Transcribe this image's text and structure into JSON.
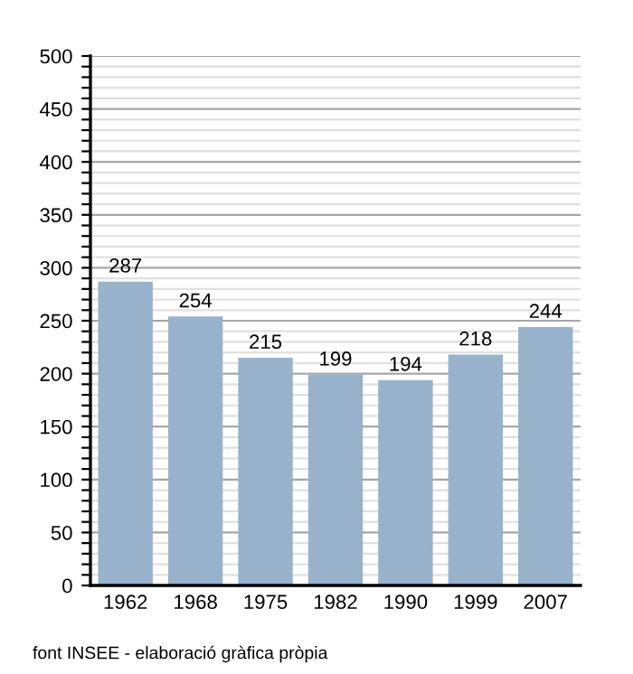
{
  "chart_data": {
    "type": "bar",
    "categories": [
      "1962",
      "1968",
      "1975",
      "1982",
      "1990",
      "1999",
      "2007"
    ],
    "values": [
      287,
      254,
      215,
      199,
      194,
      218,
      244
    ],
    "color": "#98b2cc",
    "data_labels": true,
    "ylim": [
      0,
      500
    ],
    "yticks": [
      0,
      {
        "value": 10,
        "label": null
      },
      {
        "value": 20,
        "label": null
      },
      {
        "value": 30,
        "label": null
      },
      {
        "value": 40,
        "label": null
      },
      50,
      {
        "value": 60,
        "label": null
      },
      {
        "value": 70,
        "label": null
      },
      {
        "value": 80,
        "label": null
      },
      {
        "value": 90,
        "label": null
      },
      100,
      {
        "value": 110,
        "label": null
      },
      {
        "value": 120,
        "label": null
      },
      {
        "value": 130,
        "label": null
      },
      {
        "value": 140,
        "label": null
      },
      150,
      {
        "value": 160,
        "label": null
      },
      {
        "value": 170,
        "label": null
      },
      {
        "value": 180,
        "label": null
      },
      {
        "value": 190,
        "label": null
      },
      200,
      {
        "value": 210,
        "label": null
      },
      {
        "value": 220,
        "label": null
      },
      {
        "value": 230,
        "label": null
      },
      {
        "value": 240,
        "label": null
      },
      250,
      {
        "value": 260,
        "label": null
      },
      {
        "value": 270,
        "label": null
      },
      {
        "value": 280,
        "label": null
      },
      {
        "value": 290,
        "label": null
      },
      300,
      {
        "value": 310,
        "label": null
      },
      {
        "value": 320,
        "label": null
      },
      {
        "value": 330,
        "label": null
      },
      {
        "value": 340,
        "label": null
      },
      350,
      {
        "value": 360,
        "label": null
      },
      {
        "value": 370,
        "label": null
      },
      {
        "value": 380,
        "label": null
      },
      {
        "value": 390,
        "label": null
      },
      400,
      {
        "value": 410,
        "label": null
      },
      {
        "value": 420,
        "label": null
      },
      {
        "value": 430,
        "label": null
      },
      {
        "value": 440,
        "label": null
      },
      450,
      {
        "value": 460,
        "label": null
      },
      {
        "value": 470,
        "label": null
      },
      {
        "value": 480,
        "label": null
      },
      {
        "value": 490,
        "label": null
      },
      500
    ],
    "grid": "y",
    "annotations": [
      "font INSEE - elaboració gràfica pròpia"
    ]
  }
}
